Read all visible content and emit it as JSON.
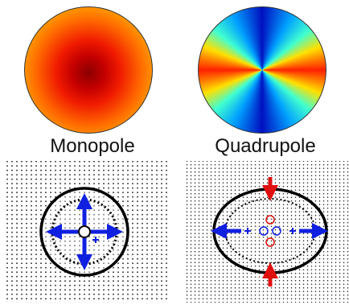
{
  "labels": [
    "Monopole",
    "Quadrupole"
  ]
}
